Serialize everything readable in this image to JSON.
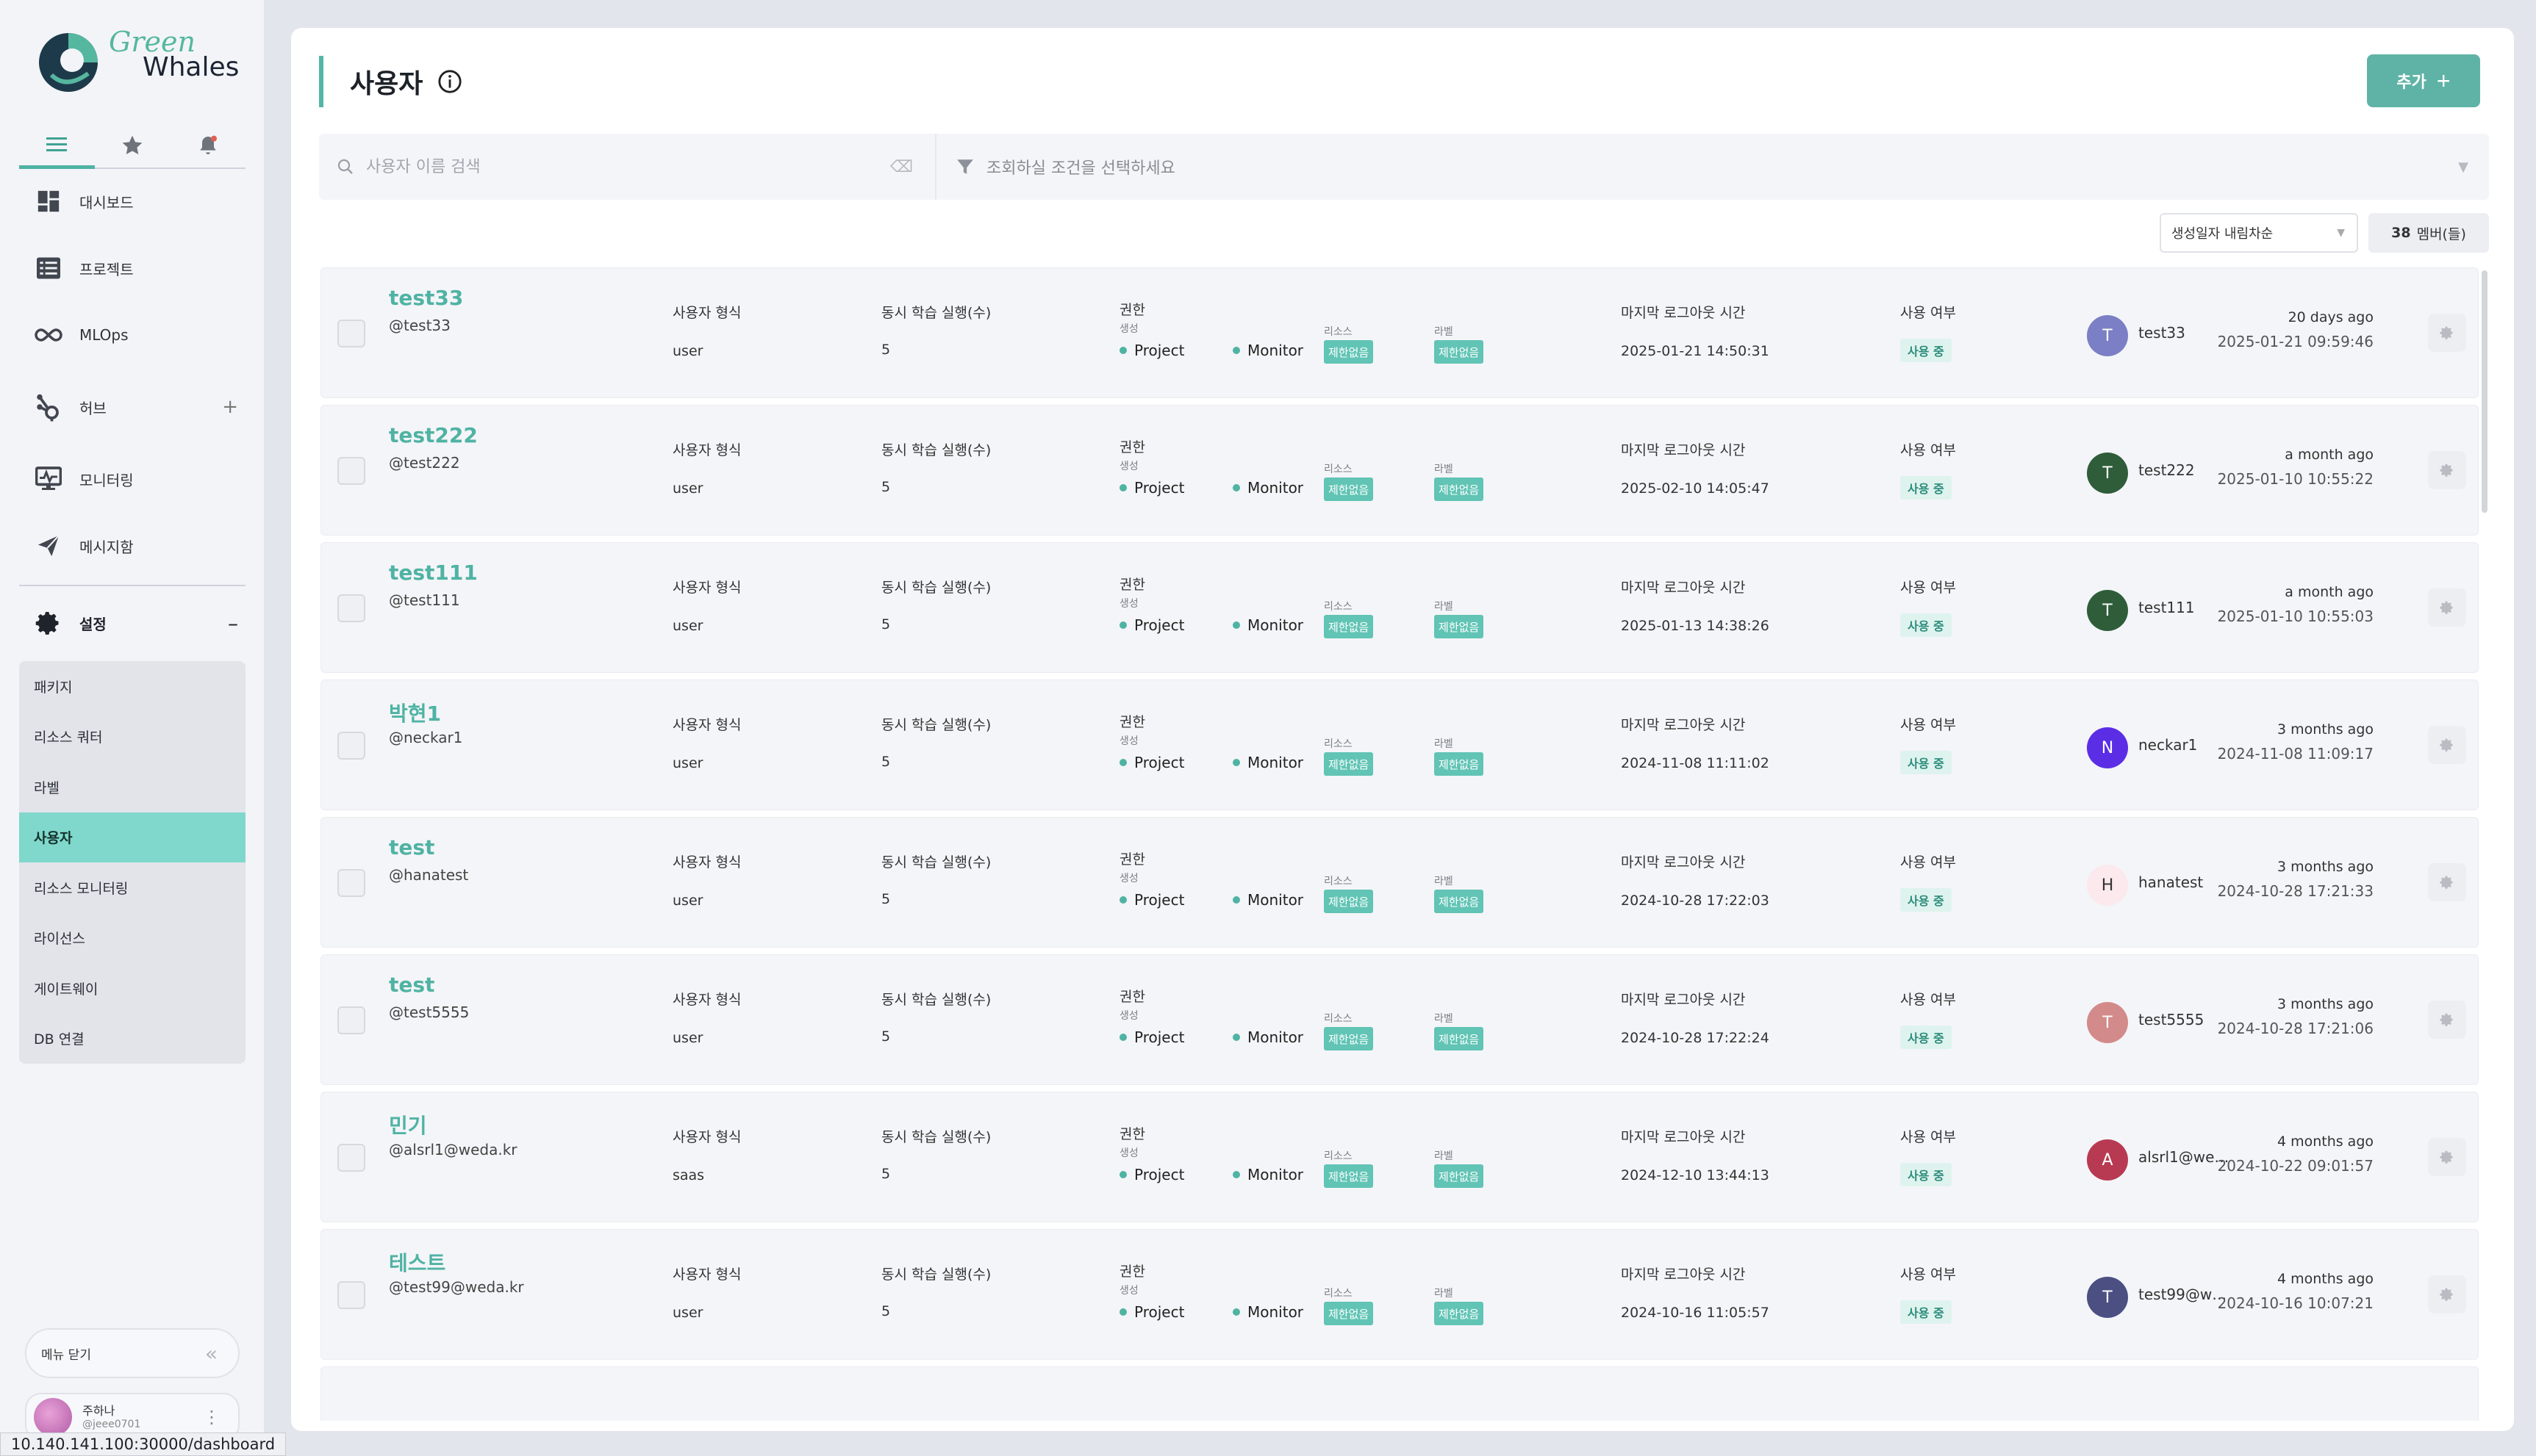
{
  "app": {
    "logo_green": "Green",
    "logo_whales": "Whales",
    "status_url": "10.140.141.100:30000/dashboard"
  },
  "sidebar": {
    "tabs": [
      {
        "icon": "list-icon",
        "active": true
      },
      {
        "icon": "star-icon",
        "active": false
      },
      {
        "icon": "bell-icon",
        "active": false
      }
    ],
    "menu": [
      {
        "label": "대시보드",
        "icon": "dashboard-icon"
      },
      {
        "label": "프로젝트",
        "icon": "project-icon"
      },
      {
        "label": "MLOps",
        "icon": "infinity-icon"
      },
      {
        "label": "허브",
        "icon": "hub-icon"
      },
      {
        "label": "모니터링",
        "icon": "monitor-icon"
      },
      {
        "label": "메시지함",
        "icon": "send-icon"
      }
    ],
    "settings_label": "설정",
    "submenu": [
      {
        "label": "패키지",
        "active": false
      },
      {
        "label": "리소스 쿼터",
        "active": false
      },
      {
        "label": "라벨",
        "active": false
      },
      {
        "label": "사용자",
        "active": true
      },
      {
        "label": "리소스 모니터링",
        "active": false
      },
      {
        "label": "라이선스",
        "active": false
      },
      {
        "label": "게이트웨이",
        "active": false
      },
      {
        "label": "DB 연결",
        "active": false
      }
    ],
    "menu_close": "메뉴 닫기",
    "user": {
      "name": "주하나",
      "id": "@jeee0701"
    }
  },
  "page": {
    "title": "사용자",
    "add_button": "추가",
    "search_placeholder": "사용자 이름 검색",
    "condition_placeholder": "조회하실 조건을 선택하세요",
    "sort_value": "생성일자 내림차순",
    "member_count": "38",
    "member_suffix": "멤버(들)"
  },
  "labels": {
    "user_type": "사용자 형식",
    "concurrent": "동시 학습 실행(수)",
    "permission": "권한",
    "create": "생성",
    "resource": "리소스",
    "label": "라벨",
    "last_logout": "마지막 로그아웃 시간",
    "usage": "사용 여부"
  },
  "colors": {
    "accent": "#4fb3a4",
    "tag": "#61c4b5"
  },
  "users": [
    {
      "name": "test33",
      "id": "@test33",
      "type": "user",
      "concurrent": "5",
      "perm1": "Project",
      "perm2": "Monitor",
      "resource": "제한없음",
      "label": "제한없음",
      "logout": "2025-01-21 14:50:31",
      "status": "사용 중",
      "initial": "T",
      "avatar_color": "#7a7fc6",
      "author": "test33",
      "relative": "20 days ago",
      "created": "2025-01-21 09:59:46"
    },
    {
      "name": "test222",
      "id": "@test222",
      "type": "user",
      "concurrent": "5",
      "perm1": "Project",
      "perm2": "Monitor",
      "resource": "제한없음",
      "label": "제한없음",
      "logout": "2025-02-10 14:05:47",
      "status": "사용 중",
      "initial": "T",
      "avatar_color": "#2f5d3a",
      "author": "test222",
      "relative": "a month ago",
      "created": "2025-01-10 10:55:22"
    },
    {
      "name": "test111",
      "id": "@test111",
      "type": "user",
      "concurrent": "5",
      "perm1": "Project",
      "perm2": "Monitor",
      "resource": "제한없음",
      "label": "제한없음",
      "logout": "2025-01-13 14:38:26",
      "status": "사용 중",
      "initial": "T",
      "avatar_color": "#2f5d3a",
      "author": "test111",
      "relative": "a month ago",
      "created": "2025-01-10 10:55:03"
    },
    {
      "name": "박현1",
      "id": "@neckar1",
      "type": "user",
      "concurrent": "5",
      "perm1": "Project",
      "perm2": "Monitor",
      "resource": "제한없음",
      "label": "제한없음",
      "logout": "2024-11-08 11:11:02",
      "status": "사용 중",
      "initial": "N",
      "avatar_color": "#5b2ee6",
      "author": "neckar1",
      "relative": "3 months ago",
      "created": "2024-11-08 11:09:17"
    },
    {
      "name": "test",
      "id": "@hanatest",
      "type": "user",
      "concurrent": "5",
      "perm1": "Project",
      "perm2": "Monitor",
      "resource": "제한없음",
      "label": "제한없음",
      "logout": "2024-10-28 17:22:03",
      "status": "사용 중",
      "initial": "H",
      "avatar_color": "#fbe9ee",
      "author": "hanatest",
      "relative": "3 months ago",
      "created": "2024-10-28 17:21:33"
    },
    {
      "name": "test",
      "id": "@test5555",
      "type": "user",
      "concurrent": "5",
      "perm1": "Project",
      "perm2": "Monitor",
      "resource": "제한없음",
      "label": "제한없음",
      "logout": "2024-10-28 17:22:24",
      "status": "사용 중",
      "initial": "T",
      "avatar_color": "#d38a8a",
      "author": "test5555",
      "relative": "3 months ago",
      "created": "2024-10-28 17:21:06"
    },
    {
      "name": "민기",
      "id": "@alsrl1@weda.kr",
      "type": "saas",
      "concurrent": "5",
      "perm1": "Project",
      "perm2": "Monitor",
      "resource": "제한없음",
      "label": "제한없음",
      "logout": "2024-12-10 13:44:13",
      "status": "사용 중",
      "initial": "A",
      "avatar_color": "#b83a52",
      "author": "alsrl1@wed...",
      "relative": "4 months ago",
      "created": "2024-10-22 09:01:57"
    },
    {
      "name": "테스트",
      "id": "@test99@weda.kr",
      "type": "user",
      "concurrent": "5",
      "perm1": "Project",
      "perm2": "Monitor",
      "resource": "제한없음",
      "label": "제한없음",
      "logout": "2024-10-16 11:05:57",
      "status": "사용 중",
      "initial": "T",
      "avatar_color": "#4b4f82",
      "author": "test99@we...",
      "relative": "4 months ago",
      "created": "2024-10-16 10:07:21"
    }
  ]
}
